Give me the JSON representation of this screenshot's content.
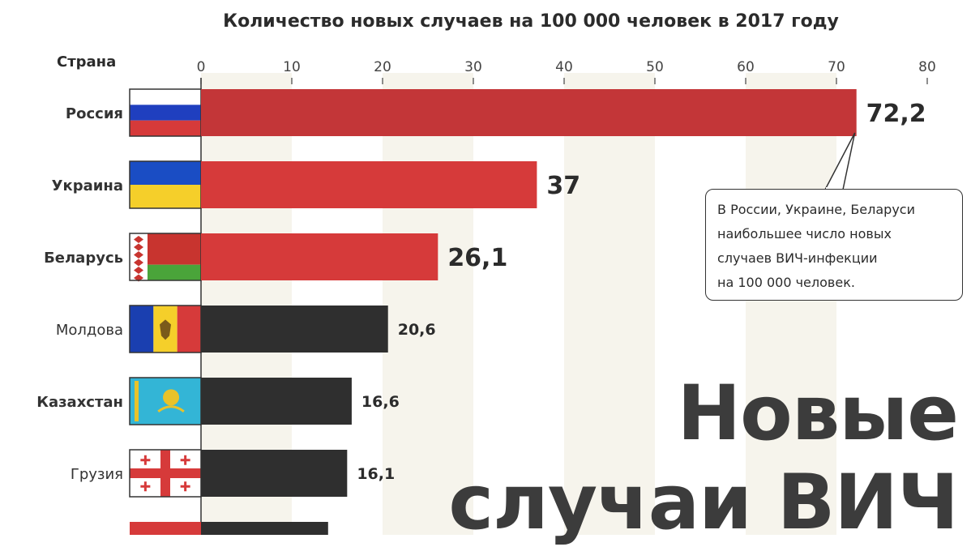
{
  "chart_data": {
    "type": "bar",
    "orientation": "horizontal",
    "title": "Количество новых случаев на 100 000 человек в 2017 году",
    "category_header": "Страна",
    "xlim": [
      0,
      80
    ],
    "ticks": [
      0,
      10,
      20,
      30,
      40,
      50,
      60,
      70,
      80
    ],
    "grid": "alternating vertical bands",
    "categories": [
      "Россия",
      "Украина",
      "Беларусь",
      "Молдова",
      "Казахстан",
      "Грузия"
    ],
    "values": [
      72.2,
      37,
      26.1,
      20.6,
      16.6,
      16.1
    ],
    "value_labels": [
      "72,2",
      "37",
      "26,1",
      "20,6",
      "16,6",
      "16,1"
    ],
    "highlighted": [
      true,
      true,
      true,
      false,
      false,
      false
    ],
    "flags": [
      "russia-flag",
      "ukraine-flag",
      "belarus-flag",
      "moldova-flag",
      "kazakhstan-flag",
      "georgia-flag"
    ],
    "partial_next_bar_value": 14,
    "colors": {
      "highlight": "#d63a3a",
      "highlight_top": "#b53337",
      "normal": "#2f2f2f",
      "band": "#f6f4ec"
    }
  },
  "annotation": {
    "text": "В России, Украине, Беларуси\nнаибольшее число новых\nслучаев ВИЧ-инфекции\nна 100 000 человек."
  },
  "headline": {
    "line1": "Новые",
    "line2": "случаи ВИЧ"
  }
}
